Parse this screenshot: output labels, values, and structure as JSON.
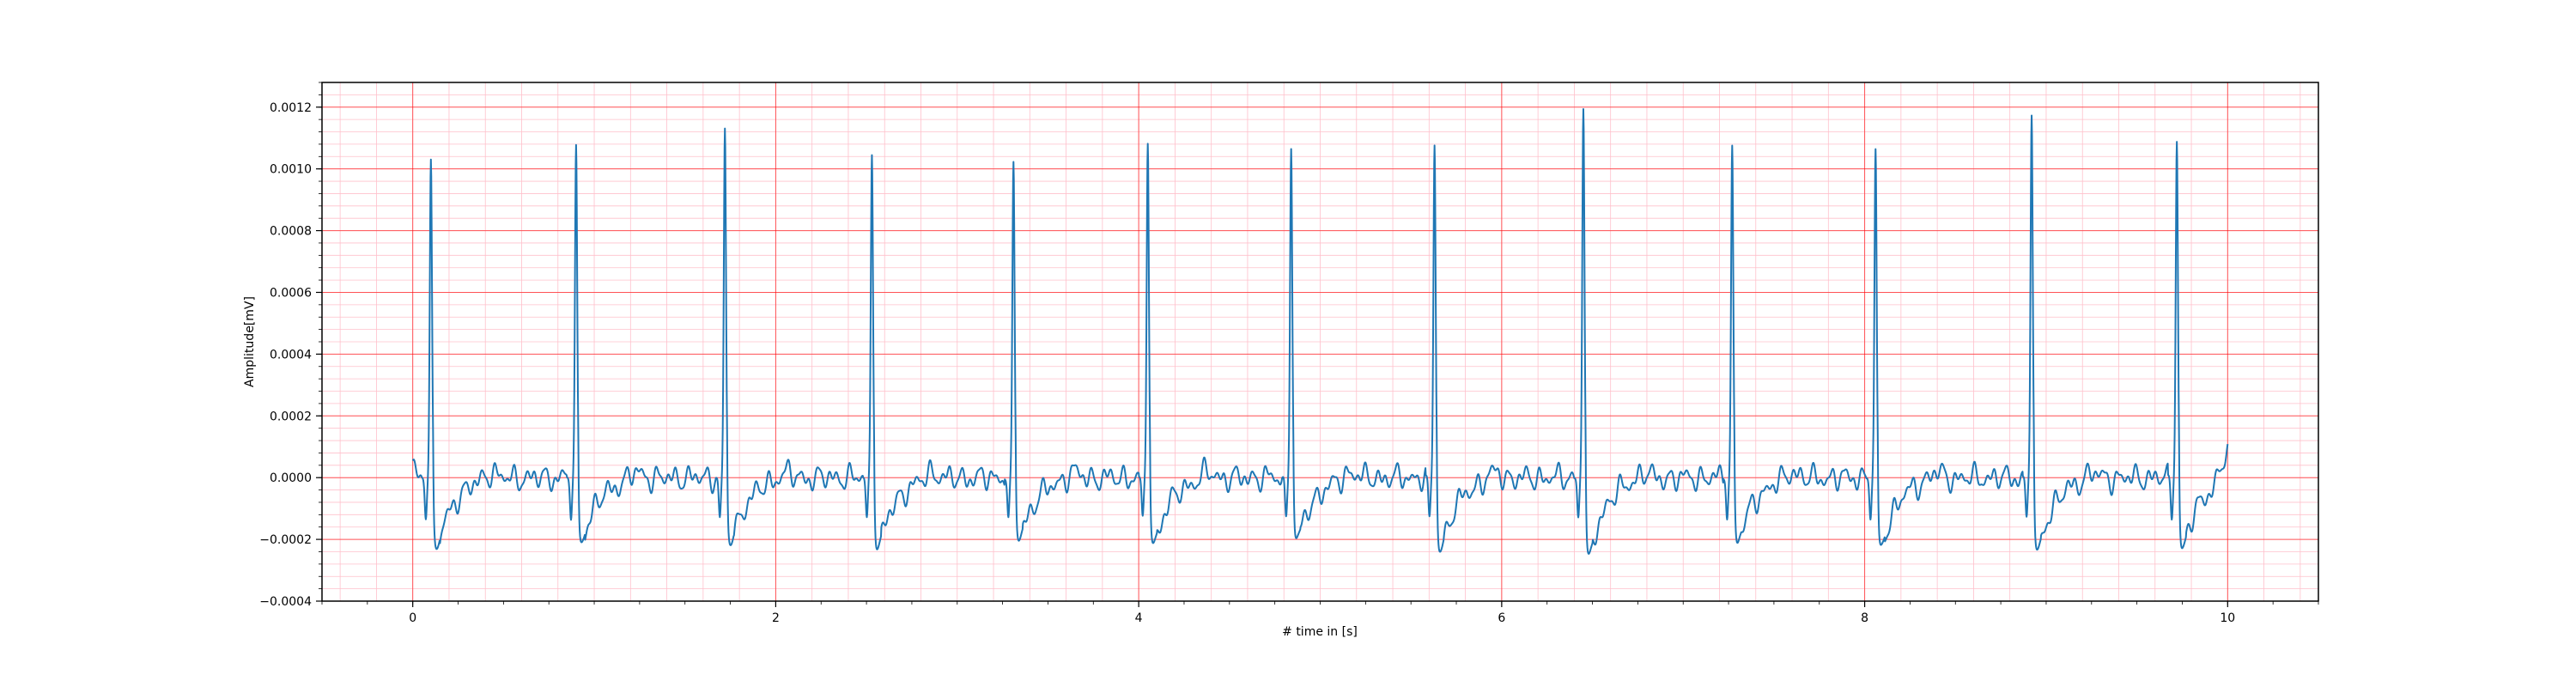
{
  "chart_data": {
    "type": "line",
    "title": "",
    "xlabel": "# time in [s]",
    "ylabel": "Amplitude[mV]",
    "xlim": [
      -0.5,
      10.5
    ],
    "ylim": [
      -0.0004,
      0.00128
    ],
    "x_ticks": [
      0,
      2,
      4,
      6,
      8,
      10
    ],
    "x_tick_labels": [
      "0",
      "2",
      "4",
      "6",
      "8",
      "10"
    ],
    "y_ticks": [
      -0.0004,
      -0.0002,
      0.0,
      0.0002,
      0.0004,
      0.0006,
      0.0008,
      0.001,
      0.0012
    ],
    "y_tick_labels": [
      "−0.0004",
      "−0.0002",
      "0.0000",
      "0.0002",
      "0.0004",
      "0.0006",
      "0.0008",
      "0.0010",
      "0.0012"
    ],
    "grid": "on (major red, minor pink)",
    "colors": {
      "line": "#1f77b4",
      "major_grid": "#ff0000",
      "minor_grid": "#ffc0cb"
    },
    "r_peaks": [
      {
        "t": 0.1,
        "peak": 0.00103,
        "trough": -0.0003
      },
      {
        "t": 0.9,
        "peak": 0.00107,
        "trough": -0.00027
      },
      {
        "t": 1.72,
        "peak": 0.00113,
        "trough": -0.00028
      },
      {
        "t": 2.53,
        "peak": 0.00105,
        "trough": -0.0003
      },
      {
        "t": 3.31,
        "peak": 0.00102,
        "trough": -0.00026
      },
      {
        "t": 4.05,
        "peak": 0.00109,
        "trough": -0.00028
      },
      {
        "t": 4.84,
        "peak": 0.00107,
        "trough": -0.00026
      },
      {
        "t": 5.63,
        "peak": 0.00108,
        "trough": -0.00031
      },
      {
        "t": 6.45,
        "peak": 0.0012,
        "trough": -0.00033
      },
      {
        "t": 7.27,
        "peak": 0.00107,
        "trough": -0.00027
      },
      {
        "t": 8.06,
        "peak": 0.00106,
        "trough": -0.00029
      },
      {
        "t": 8.92,
        "peak": 0.00118,
        "trough": -0.00031
      },
      {
        "t": 9.72,
        "peak": 0.00109,
        "trough": -0.0003
      }
    ],
    "signal_start": {
      "t": 0.0,
      "value": 3e-05
    },
    "signal_end": {
      "t": 10.0,
      "value": 9e-05
    },
    "baseline_noise_amplitude": 5e-05
  }
}
